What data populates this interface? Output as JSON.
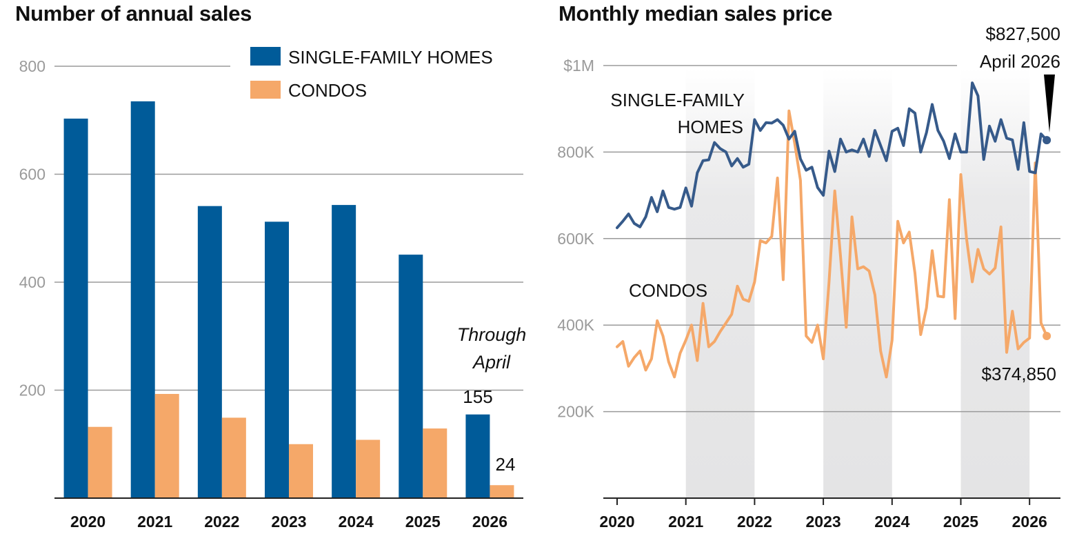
{
  "chart_data": [
    {
      "type": "bar",
      "title": "Number of annual sales",
      "categories": [
        "2020",
        "2021",
        "2022",
        "2023",
        "2024",
        "2025",
        "2026"
      ],
      "series": [
        {
          "name": "SINGLE-FAMILY HOMES",
          "color": "#005b99",
          "values": [
            703,
            735,
            541,
            512,
            543,
            451,
            155
          ]
        },
        {
          "name": "CONDOS",
          "color": "#f5a869",
          "values": [
            132,
            193,
            149,
            100,
            108,
            129,
            24
          ]
        }
      ],
      "ylim": [
        0,
        800
      ],
      "yticks": [
        "200",
        "400",
        "600",
        "800"
      ],
      "grid": true,
      "legend": "top-right",
      "annotation": {
        "text_line1": "Through",
        "text_line2": "April"
      },
      "data_labels": {
        "single_2026": "155",
        "condo_2026": "24"
      }
    },
    {
      "type": "line",
      "title": "Monthly median sales price",
      "ylim": [
        0,
        1000000
      ],
      "ytick_values": [
        200000,
        400000,
        600000,
        800000,
        1000000
      ],
      "ytick_labels": [
        "200K",
        "400K",
        "600K",
        "800K",
        "$1M"
      ],
      "xtick_labels": [
        "2020",
        "2021",
        "2022",
        "2023",
        "2024",
        "2025",
        "2026"
      ],
      "shaded_years": [
        "2021",
        "2023",
        "2025"
      ],
      "grid": true,
      "series": [
        {
          "name": "SINGLE-FAMILY HOMES",
          "color": "#365a8a",
          "x": [
            "2020-01",
            "2020-02",
            "2020-03",
            "2020-04",
            "2020-05",
            "2020-06",
            "2020-07",
            "2020-08",
            "2020-09",
            "2020-10",
            "2020-11",
            "2020-12",
            "2021-01",
            "2021-02",
            "2021-03",
            "2021-04",
            "2021-05",
            "2021-06",
            "2021-07",
            "2021-08",
            "2021-09",
            "2021-10",
            "2021-11",
            "2021-12",
            "2022-01",
            "2022-02",
            "2022-03",
            "2022-04",
            "2022-05",
            "2022-06",
            "2022-07",
            "2022-08",
            "2022-09",
            "2022-10",
            "2022-11",
            "2022-12",
            "2023-01",
            "2023-02",
            "2023-03",
            "2023-04",
            "2023-05",
            "2023-06",
            "2023-07",
            "2023-08",
            "2023-09",
            "2023-10",
            "2023-11",
            "2023-12",
            "2024-01",
            "2024-02",
            "2024-03",
            "2024-04",
            "2024-05",
            "2024-06",
            "2024-07",
            "2024-08",
            "2024-09",
            "2024-10",
            "2024-11",
            "2024-12",
            "2025-01",
            "2025-02",
            "2025-03",
            "2025-04",
            "2025-05",
            "2025-06",
            "2025-07",
            "2025-08",
            "2025-09",
            "2025-10",
            "2025-11",
            "2025-12",
            "2026-01",
            "2026-02",
            "2026-03",
            "2026-04"
          ],
          "values": [
            625000,
            640000,
            657000,
            635000,
            627000,
            650000,
            695000,
            662000,
            710000,
            672000,
            668000,
            672000,
            717000,
            675000,
            752000,
            780000,
            782000,
            822000,
            808000,
            800000,
            768000,
            785000,
            765000,
            772000,
            875000,
            850000,
            868000,
            867000,
            875000,
            862000,
            830000,
            848000,
            784000,
            758000,
            765000,
            718000,
            700000,
            802000,
            755000,
            830000,
            800000,
            805000,
            800000,
            830000,
            790000,
            850000,
            815000,
            780000,
            848000,
            855000,
            815000,
            900000,
            890000,
            800000,
            845000,
            910000,
            850000,
            825000,
            785000,
            842000,
            800000,
            800000,
            960000,
            930000,
            783000,
            860000,
            825000,
            875000,
            832000,
            828000,
            760000,
            868000,
            755000,
            752000,
            842000,
            827500
          ]
        },
        {
          "name": "CONDOS",
          "color": "#f5a869",
          "x": [
            "2020-01",
            "2020-02",
            "2020-03",
            "2020-04",
            "2020-05",
            "2020-06",
            "2020-07",
            "2020-08",
            "2020-09",
            "2020-10",
            "2020-11",
            "2020-12",
            "2021-01",
            "2021-02",
            "2021-03",
            "2021-04",
            "2021-05",
            "2021-06",
            "2021-07",
            "2021-08",
            "2021-09",
            "2021-10",
            "2021-11",
            "2021-12",
            "2022-01",
            "2022-02",
            "2022-03",
            "2022-04",
            "2022-05",
            "2022-06",
            "2022-07",
            "2022-08",
            "2022-09",
            "2022-10",
            "2022-11",
            "2022-12",
            "2023-01",
            "2023-02",
            "2023-03",
            "2023-04",
            "2023-05",
            "2023-06",
            "2023-07",
            "2023-08",
            "2023-09",
            "2023-10",
            "2023-11",
            "2023-12",
            "2024-01",
            "2024-02",
            "2024-03",
            "2024-04",
            "2024-05",
            "2024-06",
            "2024-07",
            "2024-08",
            "2024-09",
            "2024-10",
            "2024-11",
            "2024-12",
            "2025-01",
            "2025-02",
            "2025-03",
            "2025-04",
            "2025-05",
            "2025-06",
            "2025-07",
            "2025-08",
            "2025-09",
            "2025-10",
            "2025-11",
            "2025-12",
            "2026-01",
            "2026-02",
            "2026-03",
            "2026-04"
          ],
          "values": [
            350000,
            362000,
            305000,
            325000,
            340000,
            296000,
            322000,
            410000,
            375000,
            315000,
            280000,
            335000,
            365000,
            400000,
            318000,
            450000,
            350000,
            362000,
            385000,
            405000,
            425000,
            490000,
            460000,
            455000,
            500000,
            595000,
            590000,
            605000,
            740000,
            505000,
            895000,
            820000,
            735000,
            375000,
            360000,
            400000,
            322000,
            500000,
            710000,
            560000,
            395000,
            650000,
            530000,
            535000,
            525000,
            470000,
            340000,
            280000,
            365000,
            640000,
            590000,
            615000,
            520000,
            378000,
            440000,
            572000,
            467000,
            465000,
            690000,
            415000,
            748000,
            600000,
            500000,
            575000,
            530000,
            518000,
            532000,
            627000,
            337000,
            432000,
            345000,
            360000,
            370000,
            775000,
            405000,
            374850
          ]
        }
      ],
      "annotations": {
        "single_label_line1": "SINGLE-FAMILY",
        "single_label_line2": "HOMES",
        "condo_label": "CONDOS",
        "single_last_value": "$827,500",
        "single_last_date": "April 2026",
        "condo_last_value": "$374,850"
      }
    }
  ]
}
